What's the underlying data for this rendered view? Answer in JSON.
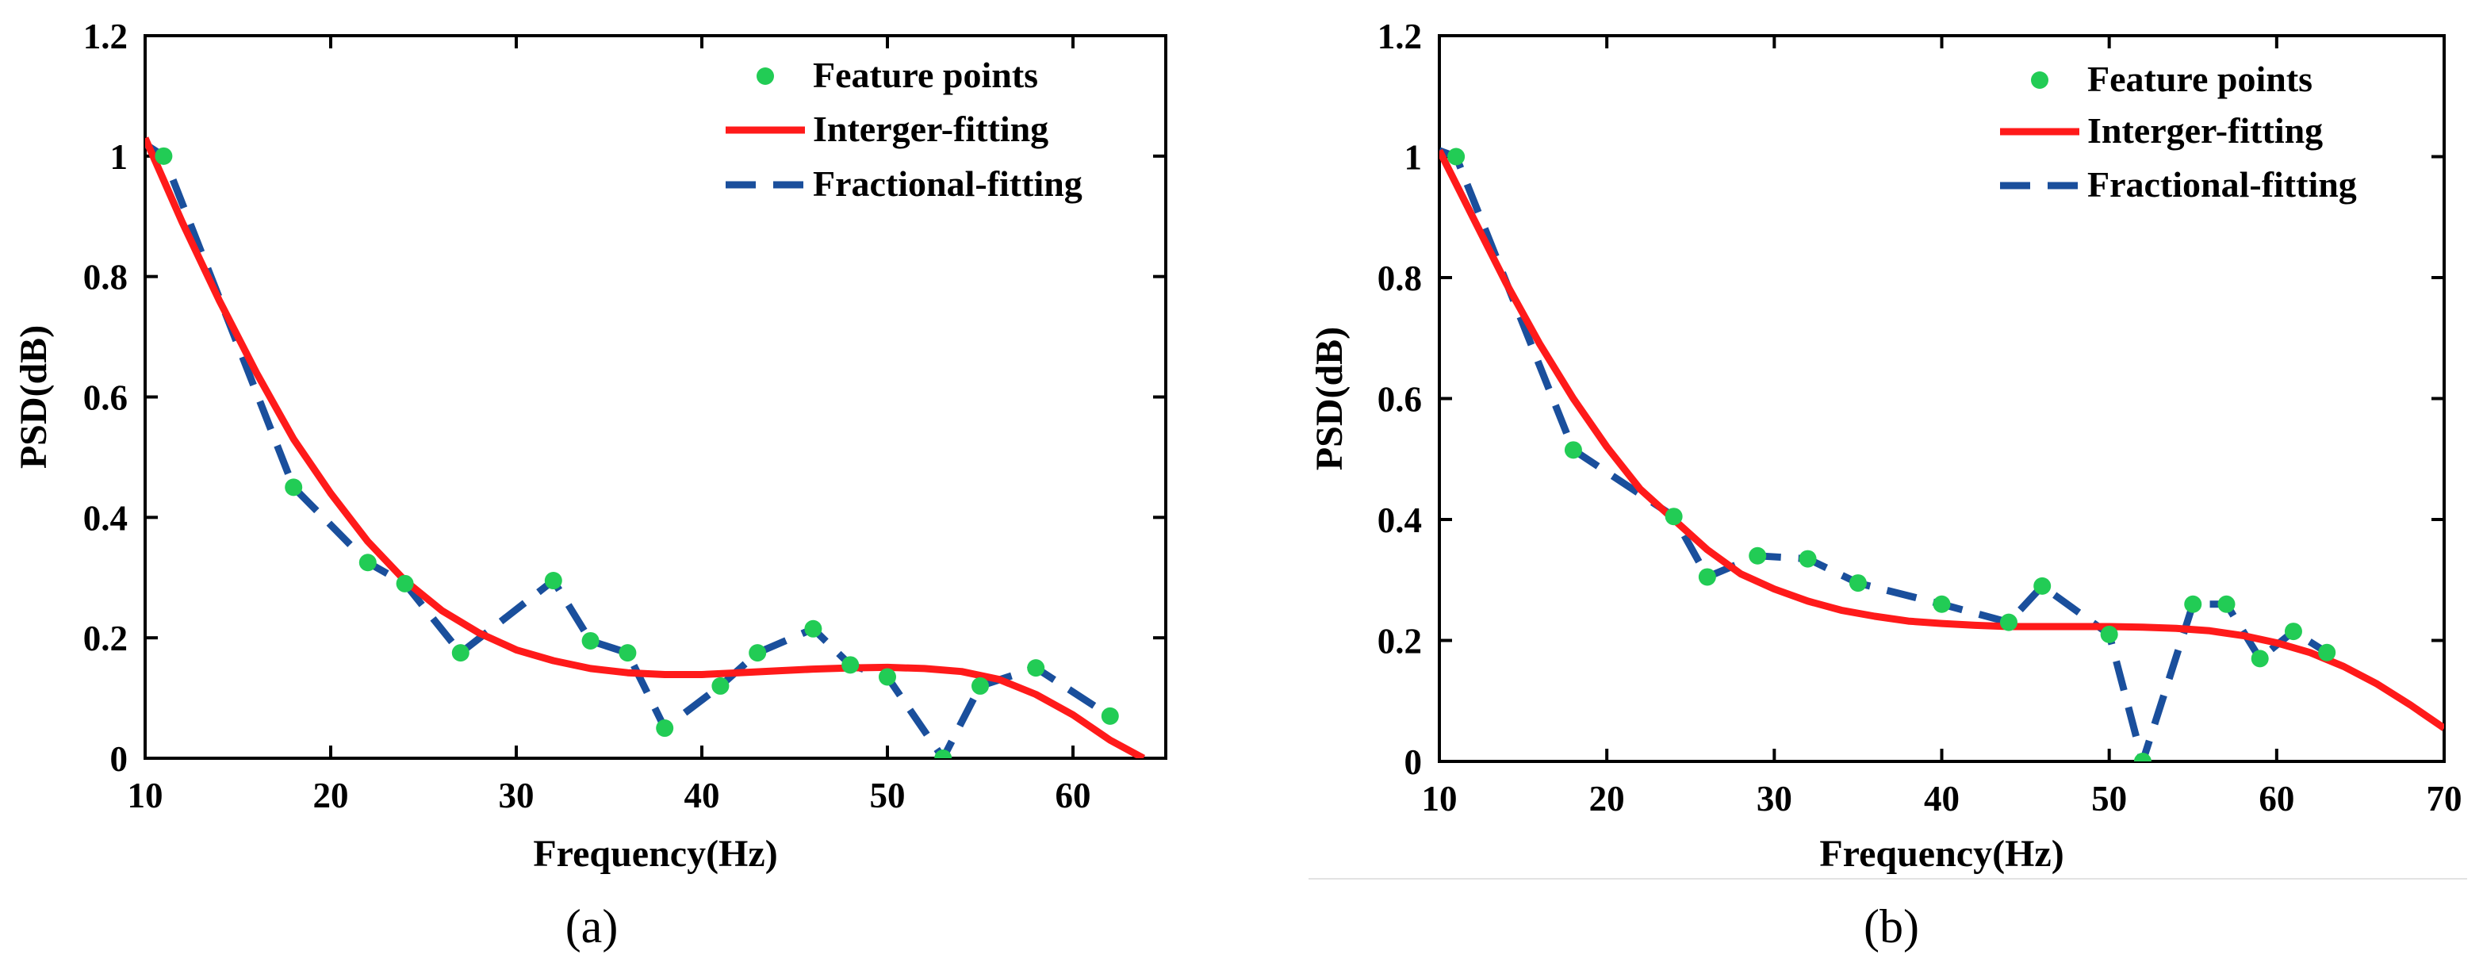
{
  "chart_data": [
    {
      "type": "line",
      "panel_label": "(a)",
      "xlabel": "Frequency(Hz)",
      "ylabel": "PSD(dB)",
      "xlim": [
        10,
        65
      ],
      "ylim": [
        0,
        1.2
      ],
      "xticks": [
        10,
        20,
        30,
        40,
        50,
        60
      ],
      "xtick_labels": [
        "10",
        "20",
        "30",
        "40",
        "50",
        "60"
      ],
      "yticks": [
        0,
        0.2,
        0.4,
        0.6,
        0.8,
        1.0,
        1.2
      ],
      "ytick_labels": [
        "0",
        "0.2",
        "0.4",
        "0.6",
        "0.8",
        "1",
        "1.2"
      ],
      "legend_position": "top-right",
      "series": [
        {
          "name": "Feature points",
          "kind": "scatter",
          "color": "#22cc55",
          "x": [
            11,
            18,
            22,
            24,
            27,
            32,
            34,
            36,
            38,
            41,
            43,
            46,
            48,
            50,
            53,
            55,
            58,
            62
          ],
          "y": [
            1.0,
            0.45,
            0.325,
            0.29,
            0.175,
            0.295,
            0.195,
            0.175,
            0.05,
            0.12,
            0.175,
            0.215,
            0.155,
            0.135,
            0.0,
            0.12,
            0.15,
            0.07
          ]
        },
        {
          "name": "Interger-fitting",
          "kind": "line",
          "style": "solid",
          "color": "#ff1a1a",
          "x": [
            10,
            12,
            14,
            16,
            18,
            20,
            22,
            24,
            26,
            28,
            30,
            32,
            34,
            36,
            38,
            40,
            42,
            44,
            46,
            48,
            50,
            52,
            54,
            56,
            58,
            60,
            62,
            63.8
          ],
          "y": [
            1.03,
            0.89,
            0.76,
            0.64,
            0.53,
            0.44,
            0.36,
            0.295,
            0.245,
            0.208,
            0.18,
            0.162,
            0.149,
            0.142,
            0.139,
            0.139,
            0.142,
            0.145,
            0.148,
            0.15,
            0.151,
            0.149,
            0.144,
            0.131,
            0.106,
            0.072,
            0.03,
            0.0
          ]
        },
        {
          "name": "Fractional-fitting",
          "kind": "line",
          "style": "dashed",
          "color": "#1a4f9c",
          "x": [
            10,
            11,
            18,
            22,
            24,
            27,
            32,
            34,
            36,
            38,
            41,
            43,
            46,
            48,
            50,
            53,
            55,
            58,
            62
          ],
          "y": [
            1.02,
            1.0,
            0.45,
            0.325,
            0.29,
            0.175,
            0.295,
            0.195,
            0.175,
            0.05,
            0.12,
            0.175,
            0.215,
            0.155,
            0.135,
            0.0,
            0.12,
            0.15,
            0.07
          ]
        }
      ]
    },
    {
      "type": "line",
      "panel_label": "(b)",
      "xlabel": "Frequency(Hz)",
      "ylabel": "PSD(dB)",
      "xlim": [
        10,
        70
      ],
      "ylim": [
        0,
        1.2
      ],
      "xticks": [
        10,
        20,
        30,
        40,
        50,
        60,
        70
      ],
      "xtick_labels": [
        "10",
        "20",
        "30",
        "40",
        "50",
        "60",
        "70"
      ],
      "yticks": [
        0,
        0.2,
        0.4,
        0.6,
        0.8,
        1.0,
        1.2
      ],
      "ytick_labels": [
        "0",
        "0.2",
        "0.4",
        "0.6",
        "0.8",
        "1",
        "1.2"
      ],
      "legend_position": "top-right",
      "series": [
        {
          "name": "Feature points",
          "kind": "scatter",
          "color": "#22cc55",
          "x": [
            11,
            18,
            24,
            26,
            29,
            32,
            35,
            40,
            44,
            46,
            50,
            52,
            55,
            57,
            59,
            61,
            63
          ],
          "y": [
            1.0,
            0.515,
            0.405,
            0.305,
            0.34,
            0.335,
            0.295,
            0.26,
            0.23,
            0.29,
            0.21,
            0.0,
            0.26,
            0.26,
            0.17,
            0.215,
            0.18
          ]
        },
        {
          "name": "Interger-fitting",
          "kind": "line",
          "style": "solid",
          "color": "#ff1a1a",
          "x": [
            10,
            12,
            14,
            16,
            18,
            20,
            22,
            24,
            26,
            28,
            30,
            32,
            34,
            36,
            38,
            40,
            42,
            44,
            46,
            48,
            50,
            52,
            54,
            56,
            58,
            60,
            62,
            64,
            66,
            68,
            70
          ],
          "y": [
            1.01,
            0.9,
            0.79,
            0.69,
            0.6,
            0.52,
            0.45,
            0.4,
            0.35,
            0.31,
            0.285,
            0.265,
            0.25,
            0.24,
            0.232,
            0.228,
            0.225,
            0.223,
            0.223,
            0.223,
            0.223,
            0.222,
            0.22,
            0.216,
            0.208,
            0.196,
            0.18,
            0.157,
            0.128,
            0.093,
            0.055
          ]
        },
        {
          "name": "Fractional-fitting",
          "kind": "line",
          "style": "dashed",
          "color": "#1a4f9c",
          "x": [
            10,
            11,
            18,
            24,
            26,
            29,
            32,
            35,
            40,
            44,
            46,
            50,
            52,
            55,
            57,
            59,
            61,
            63
          ],
          "y": [
            1.01,
            1.0,
            0.515,
            0.405,
            0.305,
            0.34,
            0.335,
            0.295,
            0.26,
            0.23,
            0.29,
            0.21,
            0.0,
            0.26,
            0.26,
            0.17,
            0.215,
            0.18
          ]
        }
      ]
    }
  ]
}
